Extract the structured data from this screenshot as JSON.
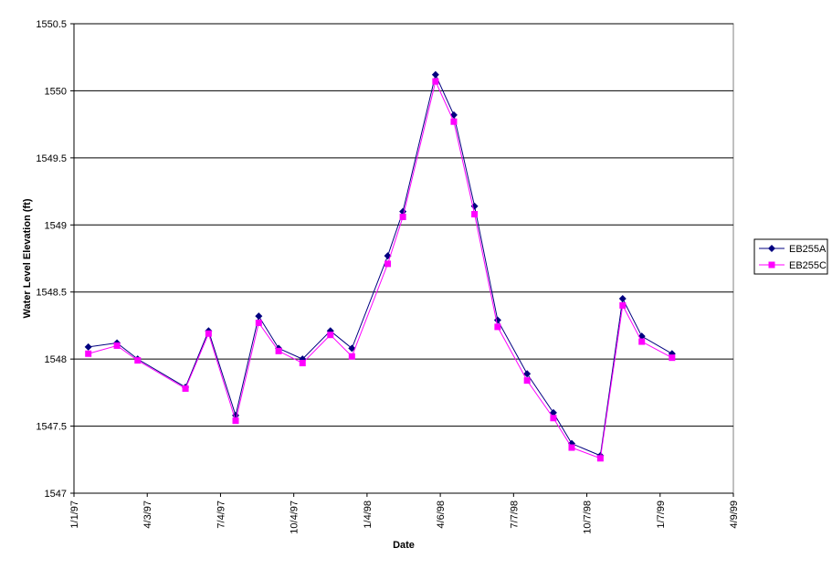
{
  "chart_data": {
    "type": "line",
    "x_label": "Date",
    "y_label": "Water Level Elevation (ft)",
    "x": [
      "1/19/97",
      "2/24/97",
      "3/22/97",
      "5/21/97",
      "6/19/97",
      "7/23/97",
      "8/21/97",
      "9/15/97",
      "10/15/97",
      "11/19/97",
      "12/16/97",
      "1/30/98",
      "2/18/98",
      "3/31/98",
      "4/23/98",
      "5/19/98",
      "6/17/98",
      "7/24/98",
      "8/26/98",
      "9/18/98",
      "10/24/98",
      "11/21/98",
      "12/15/98",
      "1/22/99"
    ],
    "series": [
      {
        "name": "EB255A",
        "color": "#000080",
        "marker": "diamond",
        "values": [
          1548.09,
          1548.12,
          1548.0,
          1547.79,
          1548.21,
          1547.58,
          1548.32,
          1548.08,
          1548.0,
          1548.21,
          1548.08,
          1548.77,
          1549.1,
          1550.12,
          1549.82,
          1549.14,
          1548.29,
          1547.89,
          1547.6,
          1547.37,
          1547.28,
          1548.45,
          1548.17,
          1548.04
        ]
      },
      {
        "name": "EB255C",
        "color": "#ff00ff",
        "marker": "square",
        "values": [
          1548.04,
          1548.1,
          1547.99,
          1547.78,
          1548.19,
          1547.54,
          1548.27,
          1548.06,
          1547.97,
          1548.18,
          1548.02,
          1548.71,
          1549.06,
          1550.07,
          1549.77,
          1549.08,
          1548.24,
          1547.84,
          1547.56,
          1547.34,
          1547.26,
          1548.4,
          1548.13,
          1548.01
        ]
      }
    ],
    "xlim": [
      "1/1/97",
      "4/9/99"
    ],
    "xticks": [
      "1/1/97",
      "4/3/97",
      "7/4/97",
      "10/4/97",
      "1/4/98",
      "4/6/98",
      "7/7/98",
      "10/7/98",
      "1/7/99",
      "4/9/99"
    ],
    "ylim": [
      1547,
      1550.5
    ],
    "yticks": [
      1547,
      1547.5,
      1548,
      1548.5,
      1549,
      1549.5,
      1550,
      1550.5
    ],
    "grid": true,
    "legend": "right"
  }
}
